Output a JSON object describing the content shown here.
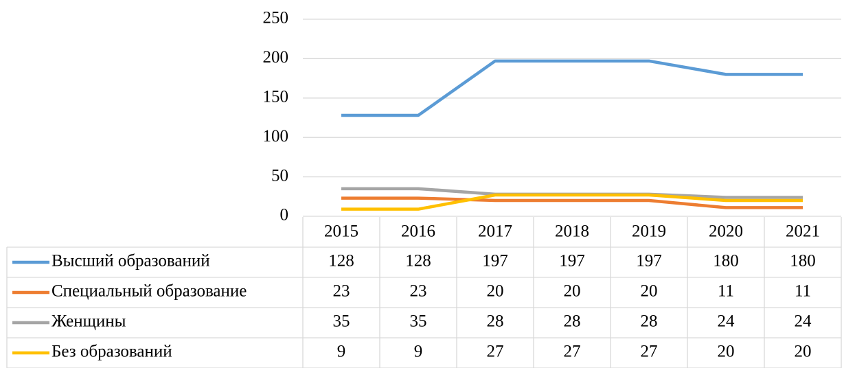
{
  "chart_data": {
    "type": "line",
    "categories": [
      "2015",
      "2016",
      "2017",
      "2018",
      "2019",
      "2020",
      "2021"
    ],
    "series": [
      {
        "name": "Высший образований",
        "color": "#5b9bd5",
        "values": [
          128,
          128,
          197,
          197,
          197,
          180,
          180
        ]
      },
      {
        "name": "Специальный образование",
        "color": "#ed7d31",
        "values": [
          23,
          23,
          20,
          20,
          20,
          11,
          11
        ]
      },
      {
        "name": "Женщины",
        "color": "#a5a5a5",
        "values": [
          35,
          35,
          28,
          28,
          28,
          24,
          24
        ]
      },
      {
        "name": "Без образований",
        "color": "#ffc000",
        "values": [
          9,
          9,
          27,
          27,
          27,
          20,
          20
        ]
      }
    ],
    "ylim": [
      0,
      250
    ],
    "yticks": [
      0,
      50,
      100,
      150,
      200,
      250
    ],
    "grid": true,
    "legend": "table"
  }
}
